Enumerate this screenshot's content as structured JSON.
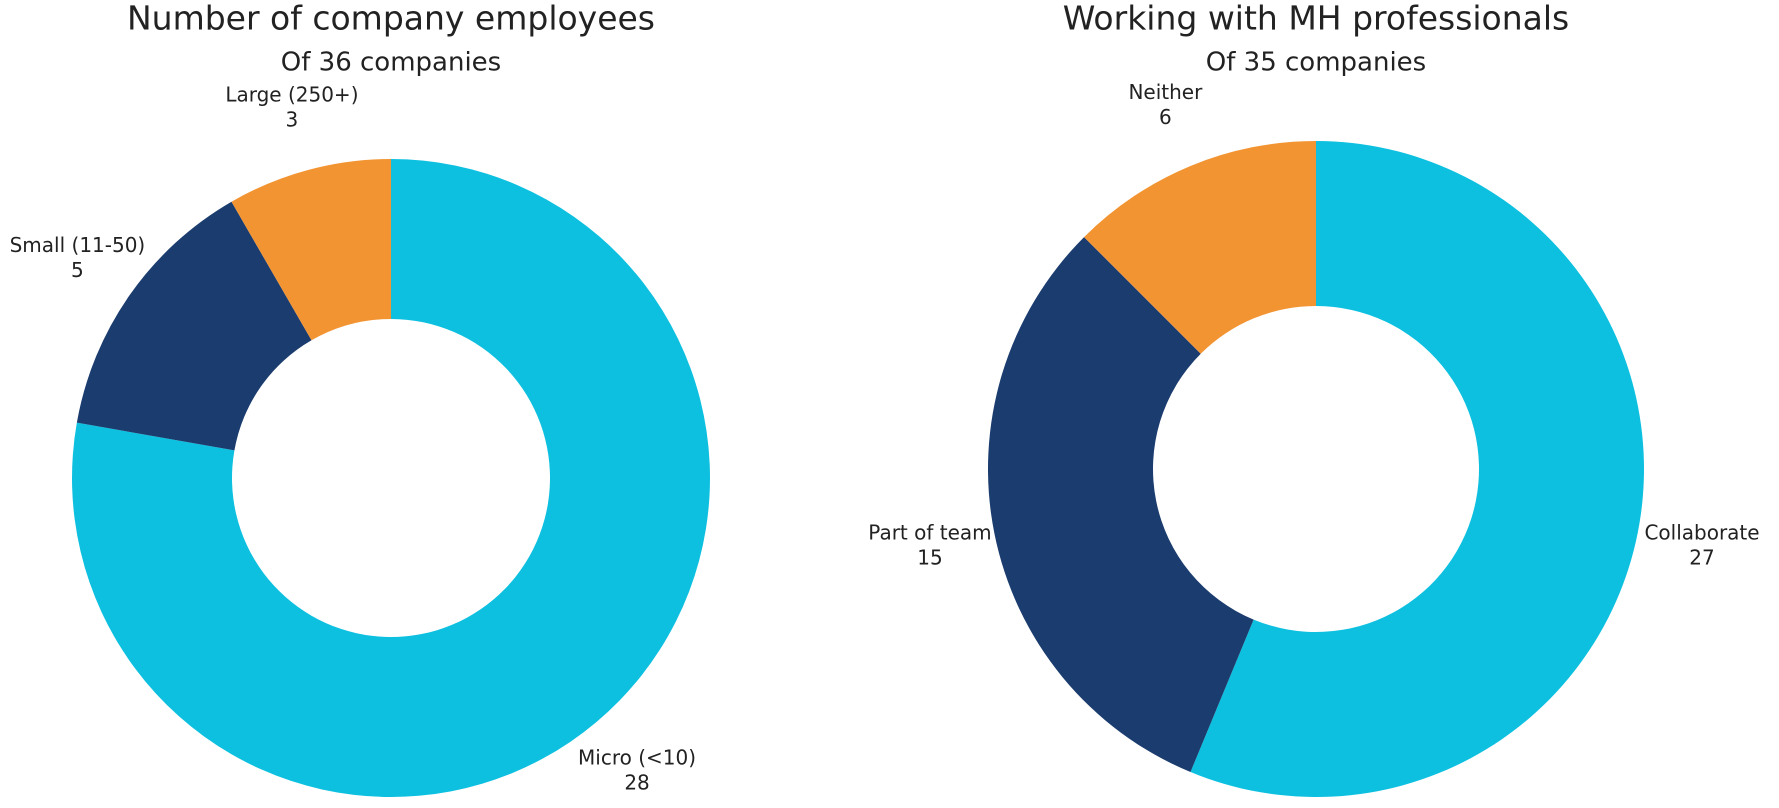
{
  "chart_data": [
    {
      "type": "pie",
      "title": "Number of company employees",
      "subtitle": "Of 36 companies",
      "categories": [
        "Micro (<10)",
        "Small (11-50)",
        "Large (250+)"
      ],
      "values": [
        28,
        5,
        3
      ],
      "colors": [
        "#0dc0e0",
        "#1b3c6e",
        "#f29432"
      ]
    },
    {
      "type": "pie",
      "title": "Working with MH professionals",
      "subtitle": "Of 35 companies",
      "categories": [
        "Collaborate",
        "Part of team",
        "Neither"
      ],
      "values": [
        27,
        15,
        6
      ],
      "colors": [
        "#0dc0e0",
        "#1b3c6e",
        "#f29432"
      ]
    }
  ]
}
